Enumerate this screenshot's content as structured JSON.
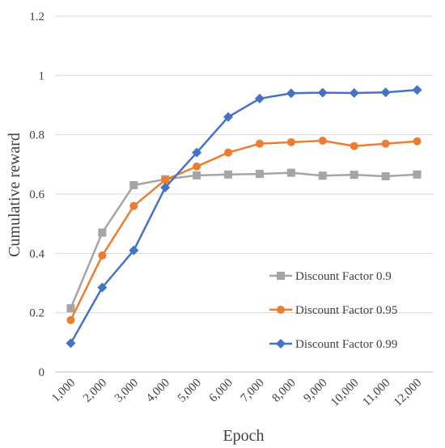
{
  "chart_data": {
    "type": "line",
    "title": "",
    "xlabel": "Epoch",
    "ylabel": "Cumulative reward",
    "ylim": [
      0,
      1.2
    ],
    "yticks": [
      "0",
      "0.2",
      "0.4",
      "0.6",
      "0.8",
      "1",
      "1.2"
    ],
    "categories": [
      "1,000",
      "2,000",
      "3,000",
      "4,000",
      "5,000",
      "6,000",
      "7,000",
      "8,000",
      "9,000",
      "10,000",
      "11,000",
      "12,000"
    ],
    "grid": "horizontal",
    "legend_position": "bottom-right",
    "series": [
      {
        "name": "Discount Factor 0.9",
        "color": "#a5a5a5",
        "marker": "square",
        "values": [
          0.215,
          0.47,
          0.63,
          0.65,
          0.663,
          0.666,
          0.668,
          0.672,
          0.662,
          0.665,
          0.66,
          0.666
        ]
      },
      {
        "name": "Discount Factor 0.95",
        "color": "#ed7d31",
        "marker": "circle",
        "values": [
          0.175,
          0.393,
          0.56,
          0.648,
          0.693,
          0.74,
          0.77,
          0.775,
          0.78,
          0.762,
          0.77,
          0.778
        ]
      },
      {
        "name": "Discount Factor 0.99",
        "color": "#4472c4",
        "marker": "diamond",
        "values": [
          0.097,
          0.285,
          0.41,
          0.622,
          0.74,
          0.86,
          0.922,
          0.94,
          0.942,
          0.941,
          0.943,
          0.951
        ]
      }
    ]
  }
}
